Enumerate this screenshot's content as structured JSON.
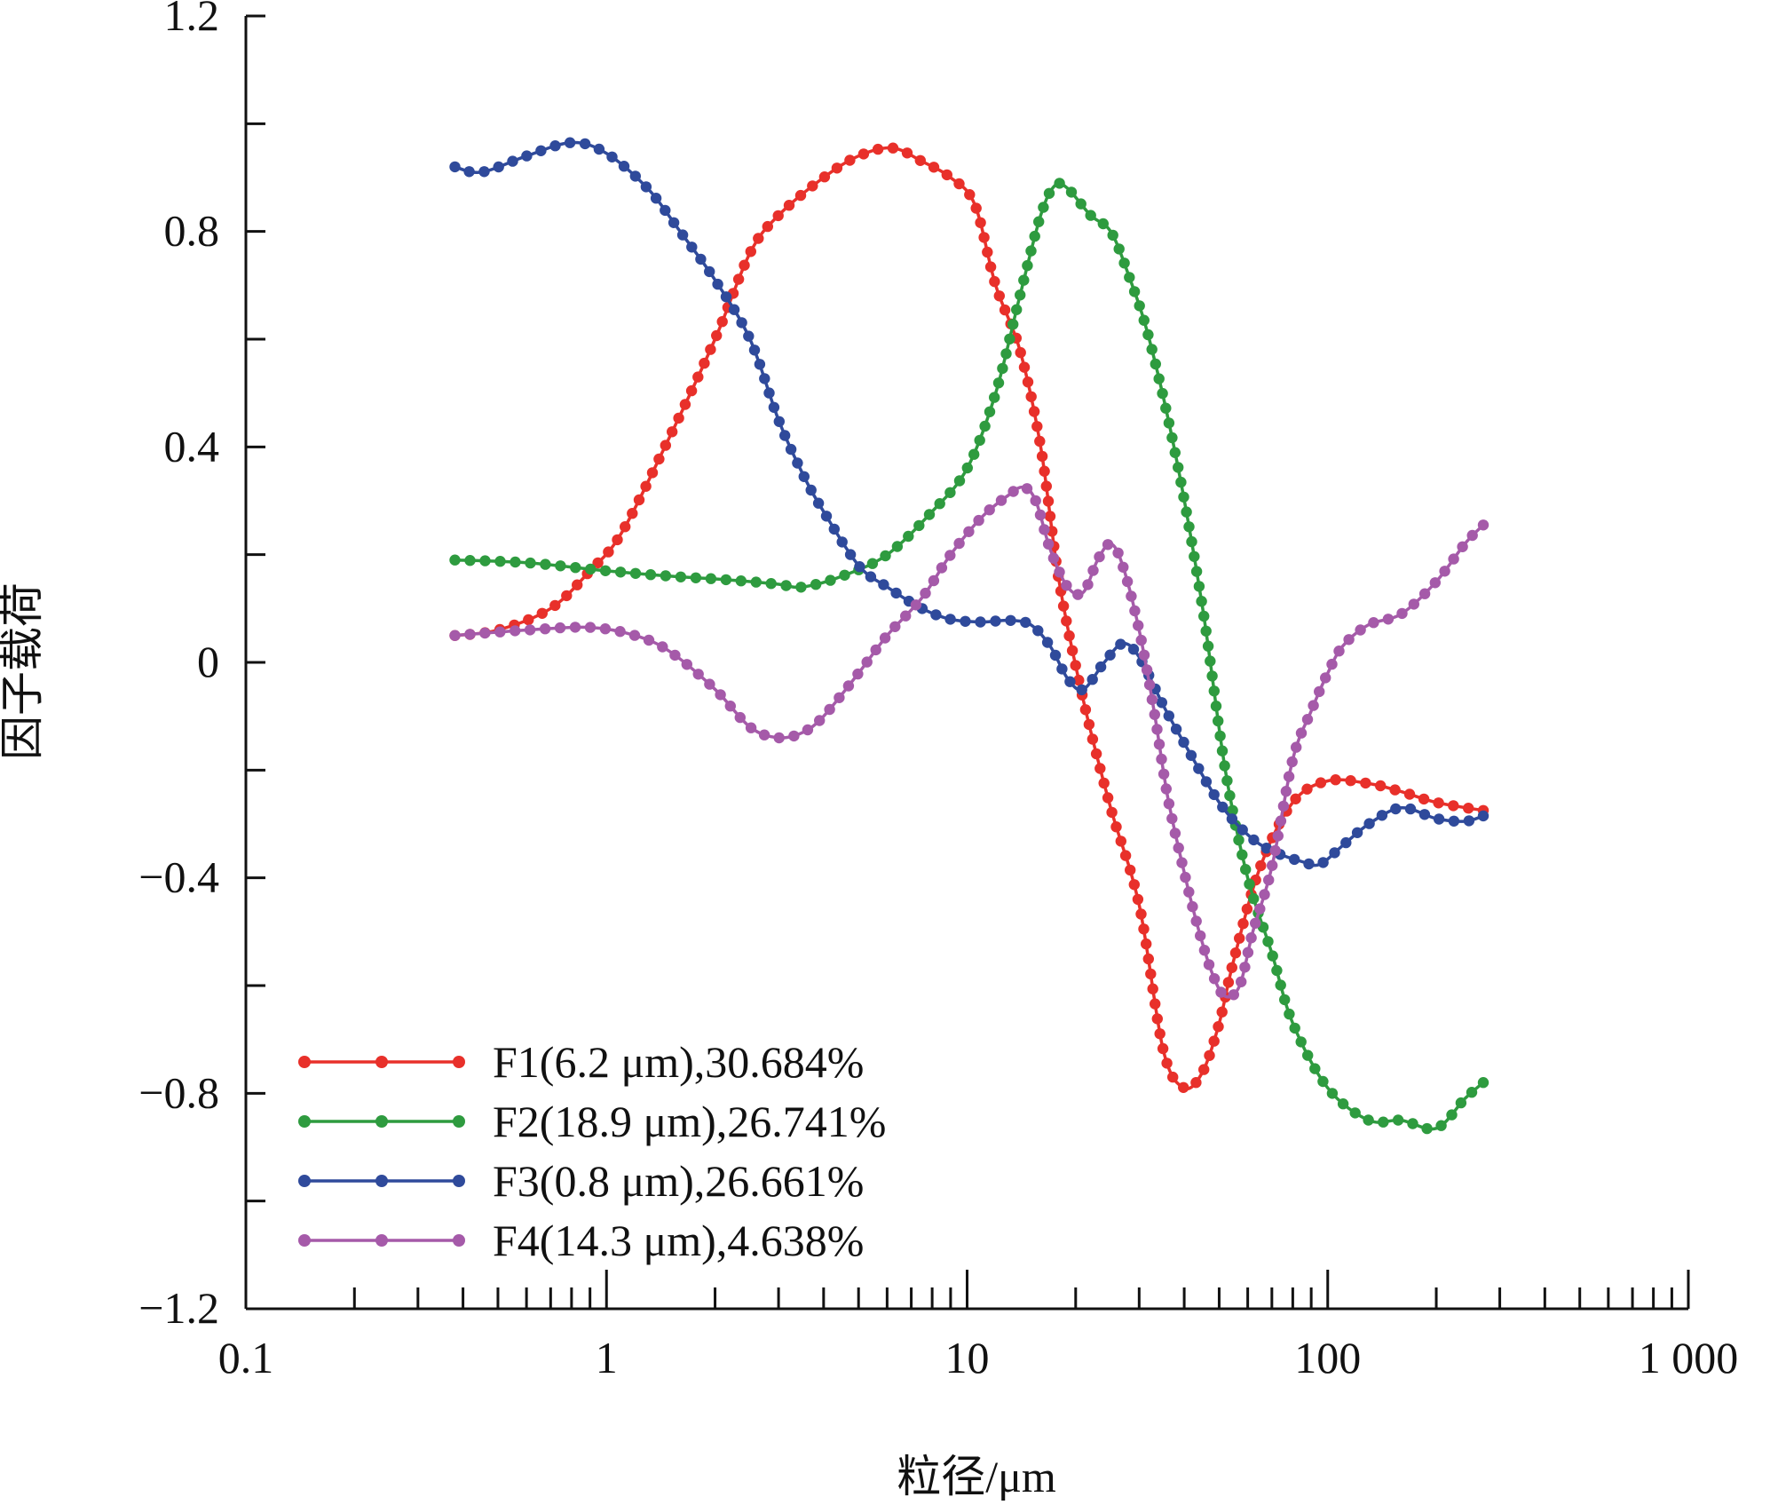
{
  "chart_data": {
    "type": "line",
    "xlabel": "粒径/μm",
    "ylabel": "因子载荷",
    "xscale": "log",
    "xlim": [
      0.1,
      1000
    ],
    "ylim": [
      -1.2,
      1.2
    ],
    "x_ticks": [
      0.1,
      1,
      10,
      100,
      1000
    ],
    "x_tick_labels": [
      "0.1",
      "1",
      "10",
      "100",
      "1 000"
    ],
    "y_ticks": [
      1.2,
      0.8,
      0.4,
      0,
      -0.4,
      -0.8,
      -1.2
    ],
    "y_tick_labels": [
      "1.2",
      "0.8",
      "0.4",
      "0",
      "−0.4",
      "−0.8",
      "−1.2"
    ],
    "grid": false,
    "legend_position": "bottom-left",
    "series": [
      {
        "name": "F1(6.2 μm),30.684%",
        "color": "#e8302a",
        "points": [
          [
            0.38,
            0.05
          ],
          [
            0.5,
            0.06
          ],
          [
            0.7,
            0.1
          ],
          [
            0.9,
            0.17
          ],
          [
            1.1,
            0.24
          ],
          [
            1.5,
            0.42
          ],
          [
            2.0,
            0.6
          ],
          [
            2.5,
            0.76
          ],
          [
            3.0,
            0.83
          ],
          [
            4.0,
            0.9
          ],
          [
            5.0,
            0.94
          ],
          [
            6.2,
            0.955
          ],
          [
            7.5,
            0.93
          ],
          [
            9.0,
            0.9
          ],
          [
            10.5,
            0.85
          ],
          [
            12.0,
            0.7
          ],
          [
            14.0,
            0.58
          ],
          [
            16.0,
            0.4
          ],
          [
            18.0,
            0.15
          ],
          [
            21.0,
            -0.07
          ],
          [
            25.0,
            -0.27
          ],
          [
            30.0,
            -0.45
          ],
          [
            35.0,
            -0.72
          ],
          [
            40.0,
            -0.79
          ],
          [
            45.0,
            -0.76
          ],
          [
            50.0,
            -0.67
          ],
          [
            55.0,
            -0.55
          ],
          [
            65.0,
            -0.38
          ],
          [
            80.0,
            -0.26
          ],
          [
            100.0,
            -0.22
          ],
          [
            130.0,
            -0.225
          ],
          [
            160.0,
            -0.24
          ],
          [
            200.0,
            -0.26
          ],
          [
            270.0,
            -0.275
          ]
        ]
      },
      {
        "name": "F2(18.9 μm),26.741%",
        "color": "#2e9b3f",
        "points": [
          [
            0.38,
            0.19
          ],
          [
            0.6,
            0.185
          ],
          [
            1.0,
            0.17
          ],
          [
            1.5,
            0.16
          ],
          [
            2.0,
            0.155
          ],
          [
            2.5,
            0.15
          ],
          [
            3.0,
            0.145
          ],
          [
            3.5,
            0.14
          ],
          [
            4.5,
            0.16
          ],
          [
            6.0,
            0.2
          ],
          [
            8.0,
            0.28
          ],
          [
            10.0,
            0.36
          ],
          [
            12.0,
            0.5
          ],
          [
            14.0,
            0.68
          ],
          [
            16.0,
            0.83
          ],
          [
            17.5,
            0.885
          ],
          [
            19.0,
            0.88
          ],
          [
            22.0,
            0.83
          ],
          [
            25.0,
            0.8
          ],
          [
            28.0,
            0.72
          ],
          [
            32.0,
            0.6
          ],
          [
            38.0,
            0.38
          ],
          [
            45.0,
            0.1
          ],
          [
            52.0,
            -0.2
          ],
          [
            60.0,
            -0.4
          ],
          [
            70.0,
            -0.54
          ],
          [
            80.0,
            -0.67
          ],
          [
            100.0,
            -0.79
          ],
          [
            130.0,
            -0.85
          ],
          [
            160.0,
            -0.85
          ],
          [
            200.0,
            -0.865
          ],
          [
            240.0,
            -0.81
          ],
          [
            270.0,
            -0.78
          ]
        ]
      },
      {
        "name": "F3(0.8 μm),26.661%",
        "color": "#2f4a9b",
        "points": [
          [
            0.38,
            0.92
          ],
          [
            0.45,
            0.91
          ],
          [
            0.6,
            0.94
          ],
          [
            0.8,
            0.965
          ],
          [
            1.0,
            0.945
          ],
          [
            1.3,
            0.88
          ],
          [
            1.6,
            0.8
          ],
          [
            2.0,
            0.71
          ],
          [
            2.5,
            0.6
          ],
          [
            3.0,
            0.45
          ],
          [
            3.5,
            0.35
          ],
          [
            4.0,
            0.28
          ],
          [
            5.0,
            0.18
          ],
          [
            6.0,
            0.14
          ],
          [
            7.5,
            0.1
          ],
          [
            9.0,
            0.08
          ],
          [
            11.0,
            0.075
          ],
          [
            13.0,
            0.078
          ],
          [
            15.0,
            0.07
          ],
          [
            17.0,
            0.03
          ],
          [
            19.0,
            -0.03
          ],
          [
            21.0,
            -0.05
          ],
          [
            24.0,
            0.0
          ],
          [
            27.0,
            0.035
          ],
          [
            30.0,
            0.01
          ],
          [
            35.0,
            -0.08
          ],
          [
            40.0,
            -0.15
          ],
          [
            50.0,
            -0.26
          ],
          [
            60.0,
            -0.32
          ],
          [
            70.0,
            -0.35
          ],
          [
            85.0,
            -0.37
          ],
          [
            95.0,
            -0.375
          ],
          [
            110.0,
            -0.34
          ],
          [
            130.0,
            -0.3
          ],
          [
            160.0,
            -0.27
          ],
          [
            200.0,
            -0.29
          ],
          [
            240.0,
            -0.295
          ],
          [
            270.0,
            -0.285
          ]
        ]
      },
      {
        "name": "F4(14.3 μm),4.638%",
        "color": "#a55aa9",
        "points": [
          [
            0.38,
            0.05
          ],
          [
            0.6,
            0.06
          ],
          [
            0.9,
            0.065
          ],
          [
            1.2,
            0.05
          ],
          [
            1.5,
            0.02
          ],
          [
            2.0,
            -0.05
          ],
          [
            2.5,
            -0.12
          ],
          [
            3.0,
            -0.14
          ],
          [
            3.5,
            -0.13
          ],
          [
            4.0,
            -0.1
          ],
          [
            5.0,
            -0.02
          ],
          [
            6.0,
            0.05
          ],
          [
            7.5,
            0.12
          ],
          [
            9.0,
            0.2
          ],
          [
            11.0,
            0.27
          ],
          [
            13.0,
            0.31
          ],
          [
            14.3,
            0.325
          ],
          [
            15.5,
            0.3
          ],
          [
            17.0,
            0.21
          ],
          [
            19.0,
            0.14
          ],
          [
            21.0,
            0.13
          ],
          [
            23.0,
            0.19
          ],
          [
            25.0,
            0.22
          ],
          [
            27.0,
            0.18
          ],
          [
            30.0,
            0.06
          ],
          [
            33.0,
            -0.09
          ],
          [
            36.0,
            -0.25
          ],
          [
            40.0,
            -0.39
          ],
          [
            44.0,
            -0.5
          ],
          [
            48.0,
            -0.58
          ],
          [
            52.0,
            -0.62
          ],
          [
            57.0,
            -0.6
          ],
          [
            62.0,
            -0.5
          ],
          [
            70.0,
            -0.38
          ],
          [
            80.0,
            -0.18
          ],
          [
            90.0,
            -0.09
          ],
          [
            100.0,
            -0.02
          ],
          [
            110.0,
            0.03
          ],
          [
            130.0,
            0.07
          ],
          [
            160.0,
            0.09
          ],
          [
            200.0,
            0.15
          ],
          [
            240.0,
            0.22
          ],
          [
            270.0,
            0.255
          ]
        ]
      }
    ]
  }
}
